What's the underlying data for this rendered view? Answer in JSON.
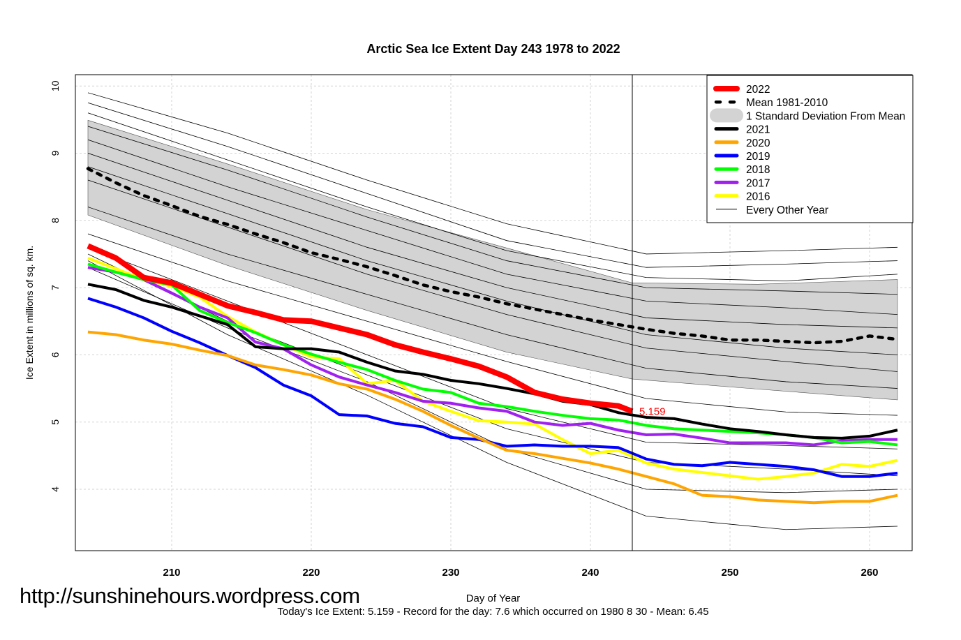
{
  "chart_data": {
    "type": "line",
    "title": "Arctic Sea Ice Extent Day 243 1978 to 2022",
    "xlabel": "Day of Year",
    "ylabel": "Ice Extent in millions of sq. km.",
    "xlim": [
      203,
      263
    ],
    "ylim": [
      3.1,
      10.2
    ],
    "xticks": [
      210,
      220,
      230,
      240,
      250,
      260
    ],
    "yticks": [
      4,
      5,
      6,
      7,
      8,
      9,
      10
    ],
    "grid": true,
    "legend_position": "top-right",
    "current_day": 243,
    "current_value_label": "5.159",
    "days": [
      204,
      206,
      208,
      210,
      212,
      214,
      216,
      218,
      220,
      222,
      224,
      226,
      228,
      230,
      232,
      234,
      236,
      238,
      240,
      242,
      244,
      246,
      248,
      250,
      252,
      254,
      256,
      258,
      260,
      262
    ],
    "sd_band": {
      "name": "1 Standard Deviation From Mean",
      "color": "#d3d3d3",
      "days": [
        204,
        214,
        224,
        234,
        243,
        252,
        262
      ],
      "upper": [
        9.49,
        8.84,
        8.16,
        7.59,
        7.07,
        7.05,
        7.12
      ],
      "lower": [
        8.08,
        7.33,
        6.66,
        6.04,
        5.64,
        5.49,
        5.33
      ]
    },
    "mean": {
      "name": "Mean 1981-2010",
      "color": "#000000",
      "values": [
        8.77,
        8.56,
        8.37,
        8.22,
        8.06,
        7.94,
        7.8,
        7.67,
        7.52,
        7.42,
        7.31,
        7.18,
        7.04,
        6.94,
        6.86,
        6.76,
        6.68,
        6.6,
        6.52,
        6.45,
        6.38,
        6.32,
        6.28,
        6.22,
        6.22,
        6.2,
        6.18,
        6.2,
        6.28,
        6.23
      ]
    },
    "series": [
      {
        "name": "2022",
        "color": "#ff0000",
        "width": 8,
        "days": [
          204,
          206,
          208,
          210,
          212,
          214,
          216,
          218,
          220,
          222,
          224,
          226,
          228,
          230,
          232,
          234,
          236,
          238,
          240,
          242,
          243
        ],
        "values": [
          7.62,
          7.44,
          7.15,
          7.07,
          6.9,
          6.73,
          6.63,
          6.52,
          6.5,
          6.4,
          6.3,
          6.15,
          6.04,
          5.94,
          5.83,
          5.67,
          5.44,
          5.34,
          5.28,
          5.24,
          5.159
        ]
      },
      {
        "name": "2021",
        "color": "#000000",
        "width": 4,
        "values": [
          7.05,
          6.97,
          6.81,
          6.71,
          6.58,
          6.45,
          6.12,
          6.09,
          6.09,
          6.04,
          5.89,
          5.76,
          5.71,
          5.62,
          5.57,
          5.5,
          5.42,
          5.31,
          5.26,
          5.14,
          5.07,
          5.05,
          4.97,
          4.9,
          4.86,
          4.81,
          4.77,
          4.76,
          4.79,
          4.88
        ]
      },
      {
        "name": "2020",
        "color": "#ffa500",
        "width": 4,
        "values": [
          6.34,
          6.3,
          6.22,
          6.16,
          6.07,
          5.99,
          5.85,
          5.78,
          5.7,
          5.57,
          5.49,
          5.34,
          5.16,
          4.95,
          4.76,
          4.58,
          4.53,
          4.46,
          4.39,
          4.3,
          4.19,
          4.08,
          3.91,
          3.89,
          3.84,
          3.82,
          3.8,
          3.82,
          3.82,
          3.91
        ]
      },
      {
        "name": "2019",
        "color": "#0000ff",
        "width": 4,
        "values": [
          6.84,
          6.71,
          6.55,
          6.35,
          6.18,
          5.99,
          5.81,
          5.55,
          5.39,
          5.11,
          5.09,
          4.98,
          4.93,
          4.77,
          4.74,
          4.64,
          4.66,
          4.64,
          4.64,
          4.62,
          4.45,
          4.37,
          4.35,
          4.4,
          4.37,
          4.34,
          4.29,
          4.19,
          4.19,
          4.24
        ]
      },
      {
        "name": "2018",
        "color": "#00ff00",
        "width": 4,
        "values": [
          7.35,
          7.23,
          7.12,
          7.04,
          6.66,
          6.48,
          6.33,
          6.15,
          6.01,
          5.89,
          5.78,
          5.62,
          5.49,
          5.44,
          5.28,
          5.23,
          5.16,
          5.1,
          5.05,
          5.03,
          4.95,
          4.9,
          4.88,
          4.86,
          4.84,
          4.81,
          4.77,
          4.69,
          4.71,
          4.66
        ]
      },
      {
        "name": "2017",
        "color": "#a020f0",
        "width": 4,
        "values": [
          7.3,
          7.23,
          7.12,
          6.92,
          6.71,
          6.55,
          6.19,
          6.09,
          5.85,
          5.67,
          5.55,
          5.44,
          5.31,
          5.28,
          5.21,
          5.16,
          5.0,
          4.95,
          4.98,
          4.88,
          4.81,
          4.82,
          4.76,
          4.69,
          4.69,
          4.69,
          4.66,
          4.72,
          4.74,
          4.74
        ]
      },
      {
        "name": "2016",
        "color": "#ffff00",
        "width": 4,
        "values": [
          7.44,
          7.28,
          7.12,
          7.02,
          6.86,
          6.57,
          6.34,
          6.15,
          5.97,
          5.94,
          5.57,
          5.62,
          5.31,
          5.16,
          5.02,
          5.0,
          4.97,
          4.74,
          4.53,
          4.58,
          4.39,
          4.3,
          4.25,
          4.2,
          4.15,
          4.19,
          4.24,
          4.37,
          4.34,
          4.43
        ]
      }
    ],
    "other_years": {
      "name": "Every Other Year",
      "color": "#000000",
      "days": [
        204,
        214,
        224,
        234,
        244,
        254,
        262
      ],
      "lines": [
        [
          9.9,
          9.3,
          8.6,
          7.95,
          7.5,
          7.55,
          7.6
        ],
        [
          9.75,
          9.1,
          8.4,
          7.7,
          7.3,
          7.35,
          7.4
        ],
        [
          9.6,
          8.9,
          8.2,
          7.55,
          7.15,
          7.1,
          7.2
        ],
        [
          9.4,
          8.75,
          8.05,
          7.4,
          7.0,
          6.95,
          6.9
        ],
        [
          9.2,
          8.5,
          7.85,
          7.2,
          6.8,
          6.7,
          6.6
        ],
        [
          9.0,
          8.3,
          7.6,
          7.0,
          6.55,
          6.45,
          6.4
        ],
        [
          8.8,
          8.1,
          7.4,
          6.8,
          6.3,
          6.1,
          6.0
        ],
        [
          8.6,
          7.9,
          7.2,
          6.6,
          6.1,
          5.9,
          5.75
        ],
        [
          8.2,
          7.5,
          6.9,
          6.3,
          5.8,
          5.6,
          5.5
        ],
        [
          7.8,
          7.1,
          6.5,
          5.9,
          5.35,
          5.15,
          5.1
        ],
        [
          7.6,
          6.8,
          6.0,
          5.2,
          4.7,
          4.65,
          4.6
        ],
        [
          7.5,
          6.5,
          5.7,
          4.9,
          4.4,
          4.3,
          4.2
        ],
        [
          7.3,
          6.4,
          5.6,
          4.6,
          4.0,
          3.95,
          4.0
        ],
        [
          7.4,
          6.3,
          5.4,
          4.4,
          3.6,
          3.4,
          3.45
        ]
      ]
    }
  },
  "watermark": "http://sunshinehours.wordpress.com",
  "footer": "Today's Ice Extent: 5.159  - Record for the day: 7.6 which occurred on 1980 8 30  - Mean: 6.45"
}
